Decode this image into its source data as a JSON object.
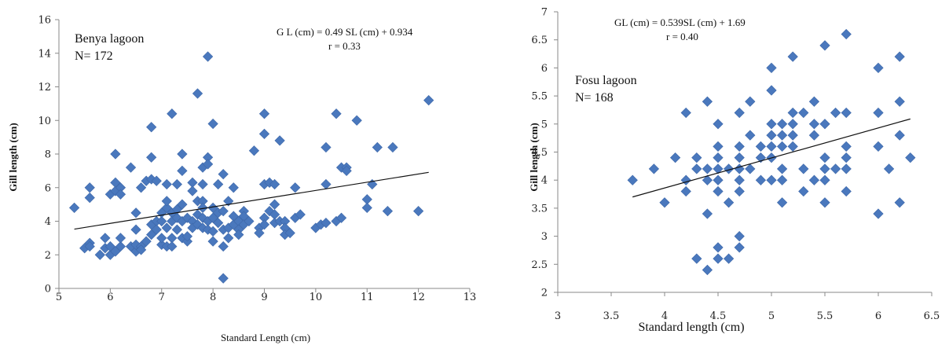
{
  "chart_data": [
    {
      "type": "scatter",
      "xlabel": "Standard Length (cm)",
      "ylabel": "Gill length (cm)",
      "xlim": [
        5,
        13
      ],
      "ylim": [
        0,
        16
      ],
      "xticks": [
        "5",
        "6",
        "7",
        "8",
        "9",
        "10",
        "11",
        "12",
        "13"
      ],
      "yticks": [
        "0",
        "2",
        "4",
        "6",
        "8",
        "10",
        "12",
        "14",
        "16"
      ],
      "label_line1": "Benya lagoon",
      "label_line2": "N= 172",
      "equation": "G L (cm) = 0.49 SL (cm) + 0.934",
      "r_text": "r = 0.33",
      "trendline": [
        [
          5.3,
          3.53
        ],
        [
          12.2,
          6.91
        ]
      ],
      "points": [
        [
          5.3,
          4.8
        ],
        [
          5.5,
          2.4
        ],
        [
          5.6,
          2.7
        ],
        [
          5.6,
          2.5
        ],
        [
          5.6,
          5.4
        ],
        [
          5.6,
          6.0
        ],
        [
          5.8,
          2.0
        ],
        [
          5.9,
          3.0
        ],
        [
          5.9,
          2.4
        ],
        [
          6.0,
          2.0
        ],
        [
          6.0,
          2.5
        ],
        [
          6.0,
          5.6
        ],
        [
          6.1,
          8.0
        ],
        [
          6.1,
          6.3
        ],
        [
          6.1,
          5.8
        ],
        [
          6.1,
          2.2
        ],
        [
          6.2,
          2.5
        ],
        [
          6.2,
          3.0
        ],
        [
          6.2,
          6.0
        ],
        [
          6.2,
          5.6
        ],
        [
          6.4,
          7.2
        ],
        [
          6.4,
          2.5
        ],
        [
          6.5,
          2.2
        ],
        [
          6.5,
          2.6
        ],
        [
          6.5,
          4.5
        ],
        [
          6.5,
          3.5
        ],
        [
          6.6,
          6.0
        ],
        [
          6.6,
          2.5
        ],
        [
          6.6,
          2.3
        ],
        [
          6.7,
          6.4
        ],
        [
          6.7,
          2.8
        ],
        [
          6.8,
          9.6
        ],
        [
          6.8,
          7.8
        ],
        [
          6.8,
          6.5
        ],
        [
          6.8,
          3.8
        ],
        [
          6.8,
          3.2
        ],
        [
          6.9,
          4.0
        ],
        [
          6.9,
          6.4
        ],
        [
          6.9,
          3.5
        ],
        [
          7.0,
          4.0
        ],
        [
          7.0,
          2.6
        ],
        [
          7.0,
          4.5
        ],
        [
          7.0,
          3.0
        ],
        [
          7.1,
          6.2
        ],
        [
          7.1,
          4.8
        ],
        [
          7.1,
          3.6
        ],
        [
          7.1,
          2.5
        ],
        [
          7.1,
          5.2
        ],
        [
          7.2,
          10.4
        ],
        [
          7.2,
          4.5
        ],
        [
          7.2,
          4.0
        ],
        [
          7.2,
          3.0
        ],
        [
          7.2,
          2.5
        ],
        [
          7.3,
          6.2
        ],
        [
          7.3,
          4.2
        ],
        [
          7.3,
          3.5
        ],
        [
          7.3,
          4.7
        ],
        [
          7.4,
          8.0
        ],
        [
          7.4,
          7.0
        ],
        [
          7.4,
          5.0
        ],
        [
          7.4,
          4.0
        ],
        [
          7.4,
          3.0
        ],
        [
          7.5,
          2.8
        ],
        [
          7.5,
          4.2
        ],
        [
          7.5,
          3.1
        ],
        [
          7.6,
          6.3
        ],
        [
          7.6,
          4.0
        ],
        [
          7.6,
          5.8
        ],
        [
          7.6,
          3.6
        ],
        [
          7.7,
          11.6
        ],
        [
          7.7,
          4.4
        ],
        [
          7.7,
          5.2
        ],
        [
          7.7,
          3.8
        ],
        [
          7.8,
          7.2
        ],
        [
          7.8,
          6.2
        ],
        [
          7.8,
          5.2
        ],
        [
          7.8,
          4.8
        ],
        [
          7.8,
          4.2
        ],
        [
          7.8,
          3.6
        ],
        [
          7.9,
          13.8
        ],
        [
          7.9,
          7.8
        ],
        [
          7.9,
          7.4
        ],
        [
          7.9,
          4.0
        ],
        [
          7.9,
          3.5
        ],
        [
          8.0,
          9.8
        ],
        [
          8.0,
          4.8
        ],
        [
          8.0,
          4.2
        ],
        [
          8.0,
          3.4
        ],
        [
          8.0,
          2.8
        ],
        [
          8.1,
          6.2
        ],
        [
          8.1,
          4.5
        ],
        [
          8.1,
          3.9
        ],
        [
          8.2,
          6.8
        ],
        [
          8.2,
          4.6
        ],
        [
          8.2,
          3.5
        ],
        [
          8.2,
          2.5
        ],
        [
          8.2,
          0.6
        ],
        [
          8.3,
          5.2
        ],
        [
          8.3,
          3.6
        ],
        [
          8.3,
          3.0
        ],
        [
          8.4,
          6.0
        ],
        [
          8.4,
          4.3
        ],
        [
          8.4,
          3.8
        ],
        [
          8.5,
          4.0
        ],
        [
          8.5,
          3.5
        ],
        [
          8.5,
          3.2
        ],
        [
          8.6,
          4.6
        ],
        [
          8.6,
          4.3
        ],
        [
          8.6,
          3.8
        ],
        [
          8.7,
          4.0
        ],
        [
          8.8,
          8.2
        ],
        [
          8.9,
          3.6
        ],
        [
          8.9,
          3.3
        ],
        [
          9.0,
          10.4
        ],
        [
          9.0,
          9.2
        ],
        [
          9.0,
          6.2
        ],
        [
          9.0,
          4.2
        ],
        [
          9.0,
          3.8
        ],
        [
          9.1,
          6.3
        ],
        [
          9.1,
          4.6
        ],
        [
          9.2,
          6.2
        ],
        [
          9.2,
          5.0
        ],
        [
          9.2,
          4.4
        ],
        [
          9.2,
          3.9
        ],
        [
          9.3,
          8.8
        ],
        [
          9.3,
          4.0
        ],
        [
          9.4,
          4.0
        ],
        [
          9.4,
          3.6
        ],
        [
          9.4,
          3.2
        ],
        [
          9.5,
          3.3
        ],
        [
          9.6,
          6.0
        ],
        [
          9.6,
          4.2
        ],
        [
          9.7,
          4.4
        ],
        [
          10.0,
          3.6
        ],
        [
          10.1,
          3.8
        ],
        [
          10.2,
          3.9
        ],
        [
          10.2,
          8.4
        ],
        [
          10.2,
          6.2
        ],
        [
          10.4,
          10.4
        ],
        [
          10.4,
          4.0
        ],
        [
          10.5,
          4.2
        ],
        [
          10.5,
          7.2
        ],
        [
          10.6,
          7.2
        ],
        [
          10.6,
          7.0
        ],
        [
          10.8,
          10.0
        ],
        [
          11.0,
          5.3
        ],
        [
          11.0,
          4.8
        ],
        [
          11.1,
          6.2
        ],
        [
          11.2,
          8.4
        ],
        [
          11.4,
          4.6
        ],
        [
          11.5,
          8.4
        ],
        [
          12.0,
          4.6
        ],
        [
          12.2,
          11.2
        ]
      ]
    },
    {
      "type": "scatter",
      "xlabel": "Standard length (cm)",
      "ylabel": "Gill length (cm)",
      "xlim": [
        3,
        6.5
      ],
      "ylim": [
        2,
        7
      ],
      "xticks": [
        "3",
        "3.5",
        "4",
        "4.5",
        "5",
        "5.5",
        "6",
        "6.5"
      ],
      "yticks": [
        "2",
        "2.5",
        "3",
        "3.5",
        "4",
        "4.5",
        "5",
        "5.5",
        "6",
        "6.5",
        "7"
      ],
      "label_line1": "Fosu lagoon",
      "label_line2": "N= 168",
      "equation": "GL (cm) = 0.539SL (cm) + 1.69",
      "r_text": "r = 0.40",
      "trendline": [
        [
          3.7,
          3.7
        ],
        [
          6.3,
          5.09
        ]
      ],
      "points": [
        [
          3.7,
          4.0
        ],
        [
          3.9,
          4.2
        ],
        [
          4.0,
          3.6
        ],
        [
          4.1,
          4.4
        ],
        [
          4.2,
          5.2
        ],
        [
          4.2,
          4.0
        ],
        [
          4.2,
          3.8
        ],
        [
          4.3,
          4.4
        ],
        [
          4.3,
          4.2
        ],
        [
          4.3,
          2.6
        ],
        [
          4.4,
          5.4
        ],
        [
          4.4,
          4.2
        ],
        [
          4.4,
          4.0
        ],
        [
          4.4,
          3.4
        ],
        [
          4.4,
          2.4
        ],
        [
          4.5,
          5.0
        ],
        [
          4.5,
          4.6
        ],
        [
          4.5,
          4.4
        ],
        [
          4.5,
          4.2
        ],
        [
          4.5,
          4.0
        ],
        [
          4.5,
          3.8
        ],
        [
          4.5,
          2.8
        ],
        [
          4.5,
          2.6
        ],
        [
          4.6,
          4.2
        ],
        [
          4.6,
          3.6
        ],
        [
          4.6,
          2.6
        ],
        [
          4.7,
          5.2
        ],
        [
          4.7,
          4.6
        ],
        [
          4.7,
          4.4
        ],
        [
          4.7,
          4.2
        ],
        [
          4.7,
          4.0
        ],
        [
          4.7,
          3.8
        ],
        [
          4.7,
          3.0
        ],
        [
          4.7,
          2.8
        ],
        [
          4.8,
          5.4
        ],
        [
          4.8,
          4.8
        ],
        [
          4.8,
          4.2
        ],
        [
          4.9,
          4.6
        ],
        [
          4.9,
          4.4
        ],
        [
          4.9,
          4.0
        ],
        [
          5.0,
          6.0
        ],
        [
          5.0,
          5.6
        ],
        [
          5.0,
          5.0
        ],
        [
          5.0,
          4.8
        ],
        [
          5.0,
          4.6
        ],
        [
          5.0,
          4.4
        ],
        [
          5.0,
          4.0
        ],
        [
          5.1,
          5.0
        ],
        [
          5.1,
          4.8
        ],
        [
          5.1,
          4.6
        ],
        [
          5.1,
          4.2
        ],
        [
          5.1,
          4.0
        ],
        [
          5.1,
          3.6
        ],
        [
          5.2,
          6.2
        ],
        [
          5.2,
          5.2
        ],
        [
          5.2,
          5.0
        ],
        [
          5.2,
          4.8
        ],
        [
          5.2,
          4.6
        ],
        [
          5.3,
          5.2
        ],
        [
          5.3,
          4.2
        ],
        [
          5.3,
          3.8
        ],
        [
          5.4,
          5.4
        ],
        [
          5.4,
          5.0
        ],
        [
          5.4,
          4.8
        ],
        [
          5.4,
          4.0
        ],
        [
          5.5,
          6.4
        ],
        [
          5.5,
          5.0
        ],
        [
          5.5,
          4.4
        ],
        [
          5.5,
          4.2
        ],
        [
          5.5,
          4.0
        ],
        [
          5.5,
          3.6
        ],
        [
          5.6,
          5.2
        ],
        [
          5.6,
          4.2
        ],
        [
          5.7,
          6.6
        ],
        [
          5.7,
          5.2
        ],
        [
          5.7,
          4.6
        ],
        [
          5.7,
          4.4
        ],
        [
          5.7,
          4.2
        ],
        [
          5.7,
          3.8
        ],
        [
          6.0,
          6.0
        ],
        [
          6.0,
          5.2
        ],
        [
          6.0,
          4.6
        ],
        [
          6.0,
          3.4
        ],
        [
          6.1,
          4.2
        ],
        [
          6.2,
          6.2
        ],
        [
          6.2,
          5.4
        ],
        [
          6.2,
          4.8
        ],
        [
          6.2,
          3.6
        ],
        [
          6.3,
          4.4
        ]
      ]
    }
  ]
}
